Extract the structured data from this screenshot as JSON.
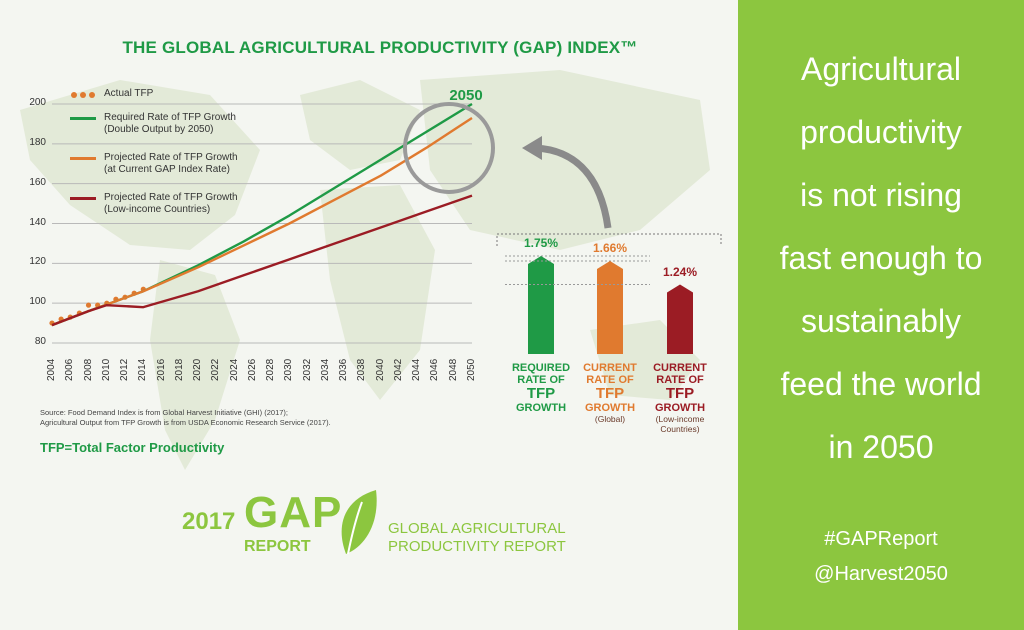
{
  "title": "THE GLOBAL AGRICULTURAL PRODUCTIVITY (GAP) INDEX™",
  "legend": {
    "actual": "Actual TFP",
    "required": [
      "Required Rate of TFP Growth",
      "(Double Output by 2050)"
    ],
    "projected_current": [
      "Projected Rate of TFP Growth",
      "(at Current GAP Index Rate)"
    ],
    "projected_low": [
      "Projected Rate of TFP Growth",
      "(Low-income Countries)"
    ]
  },
  "chart_data": [
    {
      "type": "line",
      "title": "THE GLOBAL AGRICULTURAL PRODUCTIVITY (GAP) INDEX™",
      "ylim": [
        80,
        200
      ],
      "xlim": [
        2004,
        2050
      ],
      "yticks": [
        80,
        100,
        120,
        140,
        160,
        180,
        200
      ],
      "xticks": [
        2004,
        2006,
        2008,
        2010,
        2012,
        2014,
        2016,
        2018,
        2020,
        2022,
        2024,
        2026,
        2028,
        2030,
        2032,
        2034,
        2036,
        2038,
        2040,
        2042,
        2044,
        2046,
        2048,
        2050
      ],
      "grid": true,
      "series": [
        {
          "name": "Actual TFP",
          "style": "dots",
          "color": "#e07a2f",
          "x": [
            2004,
            2005,
            2006,
            2007,
            2008,
            2009,
            2010,
            2011,
            2012,
            2013,
            2014
          ],
          "y": [
            90,
            92,
            93,
            95,
            99,
            99,
            100,
            102,
            103,
            105,
            107
          ]
        },
        {
          "name": "Required Rate of TFP Growth (Double Output by 2050)",
          "color": "#1f9a46",
          "x": [
            2004,
            2008,
            2014,
            2020,
            2025,
            2030,
            2035,
            2040,
            2045,
            2050
          ],
          "y": [
            89,
            96,
            106,
            119,
            131,
            144,
            158,
            172,
            186,
            200
          ]
        },
        {
          "name": "Projected Rate of TFP Growth (at Current GAP Index Rate)",
          "color": "#e07a2f",
          "x": [
            2004,
            2008,
            2014,
            2020,
            2025,
            2030,
            2035,
            2040,
            2045,
            2050
          ],
          "y": [
            89,
            96,
            106,
            118,
            129,
            140,
            152,
            164,
            178,
            193
          ]
        },
        {
          "name": "Projected Rate of TFP Growth (Low-income Countries)",
          "color": "#9b1c24",
          "x": [
            2004,
            2008,
            2010,
            2014,
            2020,
            2025,
            2030,
            2035,
            2040,
            2045,
            2050
          ],
          "y": [
            89,
            96,
            99,
            98,
            106,
            114,
            122,
            130,
            138,
            146,
            154
          ]
        }
      ],
      "annotations": [
        "2050"
      ]
    },
    {
      "type": "bar",
      "categories": [
        "Required",
        "Current (Global)",
        "Current (Low-income Countries)"
      ],
      "values": [
        1.75,
        1.66,
        1.24
      ],
      "value_labels": [
        "1.75%",
        "1.66%",
        "1.24%"
      ],
      "colors": [
        "#1f9a46",
        "#e07a2f",
        "#9b1c24"
      ]
    }
  ],
  "bars": {
    "labels": [
      {
        "lines": [
          "REQUIRED",
          "RATE OF",
          "TFP",
          "GROWTH"
        ],
        "sub": ""
      },
      {
        "lines": [
          "CURRENT",
          "RATE OF",
          "TFP",
          "GROWTH"
        ],
        "sub": "(Global)"
      },
      {
        "lines": [
          "CURRENT",
          "RATE OF",
          "TFP",
          "GROWTH"
        ],
        "sub": "(Low-income Countries)"
      }
    ]
  },
  "source": {
    "line1": "Source: Food Demand Index is from Global Harvest Initiative (GHI) (2017);",
    "line2": "Agricultural Output from TFP Growth is from USDA Economic Research Service (2017)."
  },
  "tfp_definition": "TFP=Total Factor Productivity",
  "logo": {
    "year": "2017",
    "gap": "GAP",
    "report": "REPORT",
    "name1": "GLOBAL AGRICULTURAL",
    "name2": "PRODUCTIVITY REPORT"
  },
  "right_panel": {
    "message": [
      "Agricultural",
      "productivity",
      "is not rising",
      "fast enough to",
      "sustainably",
      "feed the world",
      "in 2050"
    ],
    "hashtag": "#GAPReport",
    "handle": "@Harvest2050"
  },
  "colors": {
    "green": "#1f9a46",
    "orange": "#e07a2f",
    "red": "#9b1c24",
    "panel": "#8cc63f"
  }
}
